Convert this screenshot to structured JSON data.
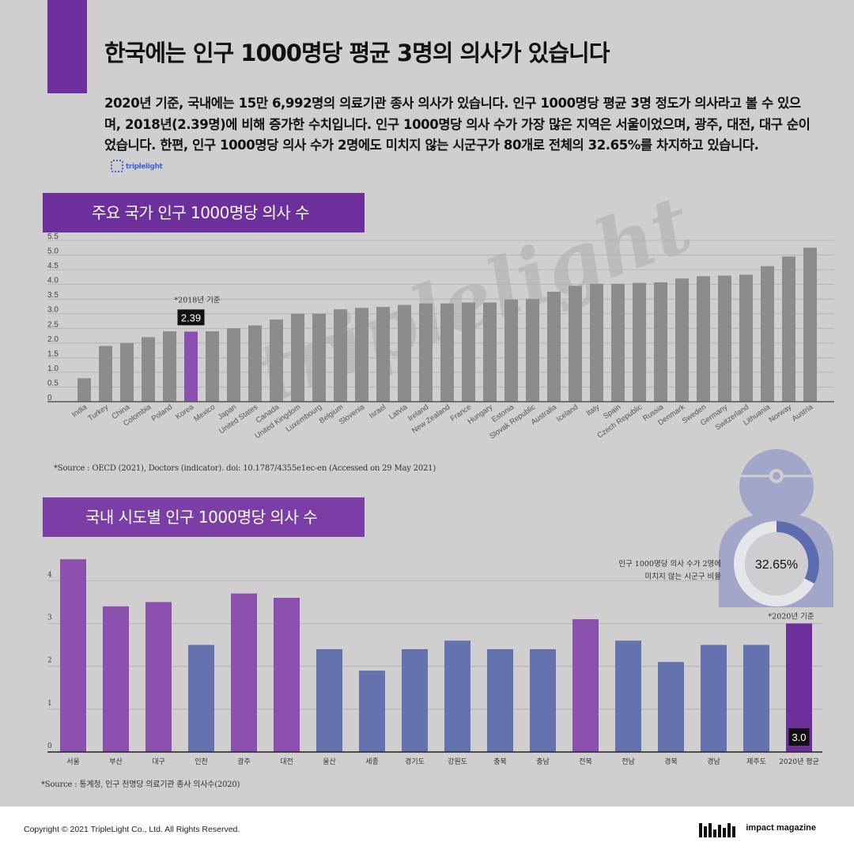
{
  "title": "한국에는 인구 1000명당 평균 3명의 의사가 있습니다",
  "description": "2020년 기준, 국내에는 15만 6,992명의 의료기관 종사 의사가 있습니다. 인구 1000명당 평균 3명 정도가 의사라고 볼 수 있으며, 2018년(2.39명)에 비해 증가한 수치입니다. 인구 1000명당 의사 수가 가장 많은 지역은 서울이었으며, 광주, 대전, 대구 순이었습니다. 한편, 인구 1000명당 의사 수가 2명에도 미치지 않는 시군구가 80개로 전체의 32.65%를 차지하고 있습니다.",
  "inline_logo": "triplelight",
  "watermark": "triplelight",
  "colors": {
    "accent": "#6d2f9c",
    "gray_bar": "#8c8c8c",
    "purple_bar": "#8b4fae",
    "blue_bar": "#6472b0",
    "highlight": "#6d2f9c",
    "background": "#d0cecf"
  },
  "chart_data": [
    {
      "type": "bar",
      "title": "주요 국가 인구 1000명당 의사 수",
      "categories": [
        "India",
        "Turkey",
        "China",
        "Colombia",
        "Poland",
        "Korea",
        "Mexico",
        "Japan",
        "United States",
        "Canada",
        "United Kingdom",
        "Luxembourg",
        "Belgium",
        "Slovenia",
        "Israel",
        "Latvia",
        "Ireland",
        "New Zealand",
        "France",
        "Hungary",
        "Estonia",
        "Slovak Republic",
        "Australia",
        "Iceland",
        "Italy",
        "Spain",
        "Czech Republic",
        "Russia",
        "Denmark",
        "Sweden",
        "Germany",
        "Switzerland",
        "Lithuania",
        "Norway",
        "Austria"
      ],
      "values": [
        0.8,
        1.9,
        2.0,
        2.2,
        2.4,
        2.39,
        2.4,
        2.5,
        2.6,
        2.8,
        3.0,
        3.0,
        3.15,
        3.2,
        3.23,
        3.3,
        3.35,
        3.35,
        3.38,
        3.38,
        3.48,
        3.5,
        3.75,
        3.95,
        4.02,
        4.02,
        4.05,
        4.07,
        4.2,
        4.28,
        4.3,
        4.33,
        4.62,
        4.95,
        5.25
      ],
      "yticks": [
        "0",
        "0.5",
        "1.0",
        "1.5",
        "2.0",
        "2.5",
        "3.0",
        "3.5",
        "4.0",
        "4.5",
        "5.0",
        "5.5"
      ],
      "ylim": [
        0,
        5.5
      ],
      "highlight_index": 5,
      "highlight_label": "2.39",
      "highlight_note": "*2018년 기준",
      "source": "*Source :  OECD (2021), Doctors (indicator). doi: 10.1787/4355e1ec-en (Accessed on 29 May 2021)"
    },
    {
      "type": "bar",
      "title": "국내 시도별 인구 1000명당 의사 수",
      "categories": [
        "서울",
        "부산",
        "대구",
        "인천",
        "광주",
        "대전",
        "울산",
        "세종",
        "경기도",
        "강원도",
        "충북",
        "충남",
        "전북",
        "전남",
        "경북",
        "경남",
        "제주도",
        "2020년 평균"
      ],
      "values": [
        4.5,
        3.4,
        3.5,
        2.5,
        3.7,
        3.6,
        2.4,
        1.9,
        2.4,
        2.6,
        2.4,
        2.4,
        3.1,
        2.6,
        2.1,
        2.5,
        2.5,
        3.0
      ],
      "color_groups": [
        "purple",
        "purple",
        "purple",
        "blue",
        "purple",
        "purple",
        "blue",
        "blue",
        "blue",
        "blue",
        "blue",
        "blue",
        "purple",
        "blue",
        "blue",
        "blue",
        "blue",
        "highlight"
      ],
      "yticks": [
        "0",
        "1",
        "2",
        "3",
        "4"
      ],
      "ylim": [
        0,
        4.8
      ],
      "highlight_label": "3.0",
      "highlight_note": "*2020년 기준",
      "source": "*Source :  통계청, 인구 천명당 의료기관 종사 의사수(2020)"
    },
    {
      "type": "pie",
      "title": "",
      "value_label": "32.65%",
      "value": 32.65,
      "caption": "인구 1000명당 의사 수가 2명에\n미치지 않는 시군구 비율"
    }
  ],
  "footer": {
    "copyright": "Copyright © 2021 TripleLight Co., Ltd. All Rights Reserved.",
    "brand": "impact magazine"
  }
}
